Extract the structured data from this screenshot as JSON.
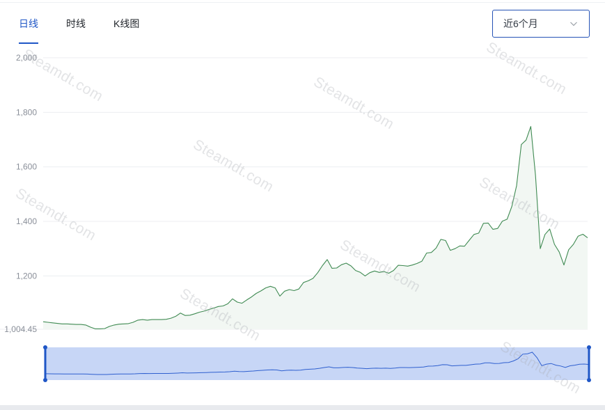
{
  "tabs": [
    {
      "label": "日线",
      "active": true
    },
    {
      "label": "时线",
      "active": false
    },
    {
      "label": "K线图",
      "active": false
    }
  ],
  "range_select": {
    "value": "近6个月"
  },
  "watermark": "Steamdt.com",
  "colors": {
    "accent": "#1f56c6",
    "line": "#3f8a52",
    "area": "#f2f7f3",
    "navigator_fill": "#c7d6f6",
    "navigator_line": "#2e5fcf"
  },
  "chart_data": {
    "type": "area",
    "title": "",
    "xlabel": "",
    "ylabel": "",
    "ylim": [
      1004.45,
      2000
    ],
    "y_ticks": [
      {
        "value": 2000,
        "label": "2,000"
      },
      {
        "value": 1800,
        "label": "1,800"
      },
      {
        "value": 1600,
        "label": "1,600"
      },
      {
        "value": 1400,
        "label": "1,400"
      },
      {
        "value": 1200,
        "label": "1,200"
      },
      {
        "value": 1004.45,
        "label": "1,004.45"
      }
    ],
    "grid": true,
    "series": [
      {
        "values": [
          1032,
          1030,
          1028,
          1026,
          1024,
          1024,
          1023,
          1022,
          1022,
          1020,
          1012,
          1006,
          1006,
          1007,
          1015,
          1020,
          1023,
          1024,
          1025,
          1030,
          1038,
          1040,
          1038,
          1040,
          1040,
          1040,
          1041,
          1045,
          1052,
          1064,
          1055,
          1056,
          1061,
          1067,
          1071,
          1077,
          1082,
          1088,
          1090,
          1098,
          1116,
          1104,
          1100,
          1112,
          1123,
          1136,
          1145,
          1156,
          1162,
          1156,
          1126,
          1144,
          1150,
          1146,
          1152,
          1176,
          1182,
          1191,
          1212,
          1238,
          1260,
          1228,
          1229,
          1241,
          1247,
          1237,
          1220,
          1213,
          1200,
          1212,
          1218,
          1213,
          1216,
          1210,
          1220,
          1239,
          1238,
          1236,
          1240,
          1246,
          1254,
          1284,
          1286,
          1302,
          1334,
          1330,
          1294,
          1300,
          1310,
          1309,
          1331,
          1352,
          1357,
          1393,
          1394,
          1371,
          1374,
          1401,
          1408,
          1455,
          1531,
          1682,
          1698,
          1748,
          1568,
          1300,
          1352,
          1372,
          1316,
          1288,
          1240,
          1296,
          1316,
          1346,
          1353,
          1340
        ]
      }
    ]
  }
}
